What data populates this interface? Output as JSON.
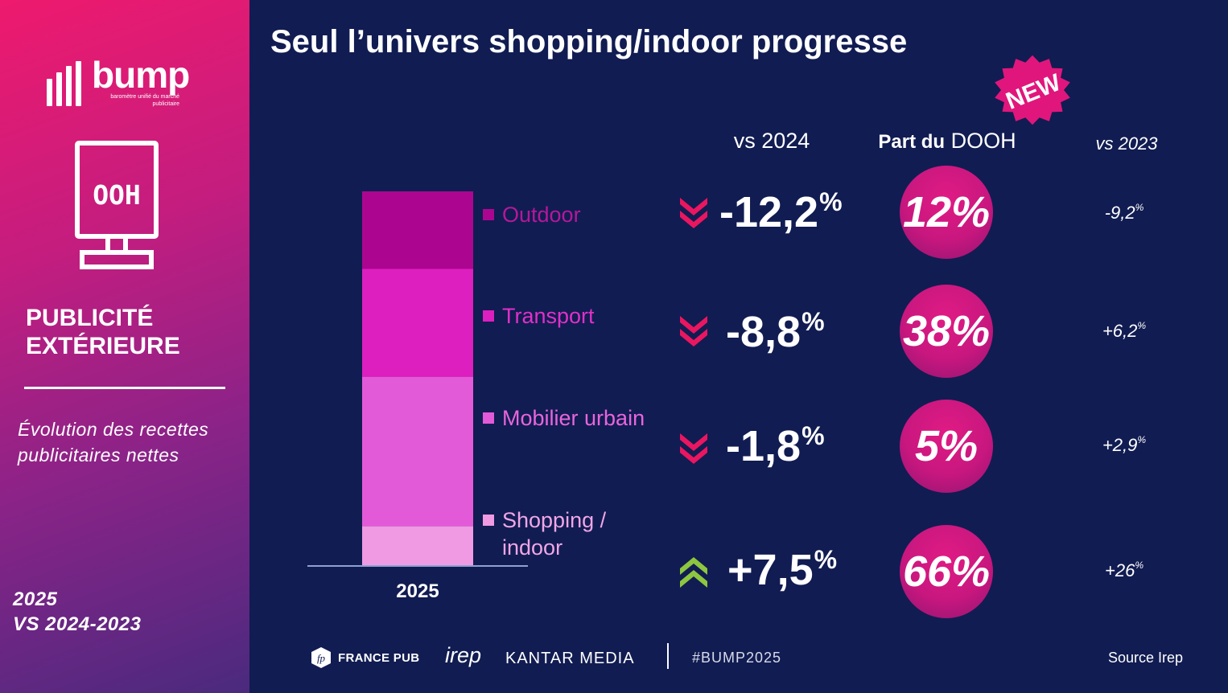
{
  "sidebar": {
    "brand": "bump",
    "brand_tagline": "baromètre unifié du marché publicitaire",
    "media_icon_text": "OOH",
    "title_line1": "PUBLICITÉ",
    "title_line2": "EXTÉRIEURE",
    "description": "Évolution des recettes publicitaires nettes",
    "years_line1": "2025",
    "years_line2": "VS 2024-2023"
  },
  "header": {
    "title": "Seul l’univers shopping/indoor progresse",
    "badge": "NEW"
  },
  "columns": {
    "vs2024": "vs 2024",
    "part_bold": "Part du",
    "part_rest": " DOOH",
    "vs2023": "vs 2023"
  },
  "rows": [
    {
      "segment": "Outdoor",
      "change": "-12,2",
      "direction": "down",
      "share": "12%",
      "prev": "-9,2"
    },
    {
      "segment": "Transport",
      "change": "-8,8",
      "direction": "down",
      "share": "38%",
      "prev": "+6,2"
    },
    {
      "segment": "Mobilier urbain",
      "change": "-1,8",
      "direction": "down",
      "share": "5%",
      "prev": "+2,9"
    },
    {
      "segment": "Shopping / indoor",
      "change": "+7,5",
      "direction": "up",
      "share": "66%",
      "prev": "+26"
    }
  ],
  "percent_sign": "%",
  "chart_data": {
    "type": "bar",
    "stacked": true,
    "categories": [
      "2025"
    ],
    "series": [
      {
        "name": "Shopping / indoor",
        "values": [
          10.5
        ],
        "color": "#ef9ae3"
      },
      {
        "name": "Mobilier urbain",
        "values": [
          39.5
        ],
        "color": "#e35ad8"
      },
      {
        "name": "Transport",
        "values": [
          28.5
        ],
        "color": "#dd1fbf"
      },
      {
        "name": "Outdoor",
        "values": [
          20.5
        ],
        "color": "#ac0690"
      }
    ],
    "total": 99,
    "title": "",
    "xlabel": "",
    "ylabel": "",
    "legend": "right",
    "grid": false
  },
  "colors": {
    "background": "#111c52",
    "down_arrow": "#ea1660",
    "up_arrow": "#8dc63f",
    "circle": "#d0187f"
  },
  "footer": {
    "logo1": "FRANCE PUB",
    "logo2": "irep",
    "logo3": "KANTAR MEDIA",
    "hashtag": "#BUMP2025",
    "source": "Source Irep"
  }
}
